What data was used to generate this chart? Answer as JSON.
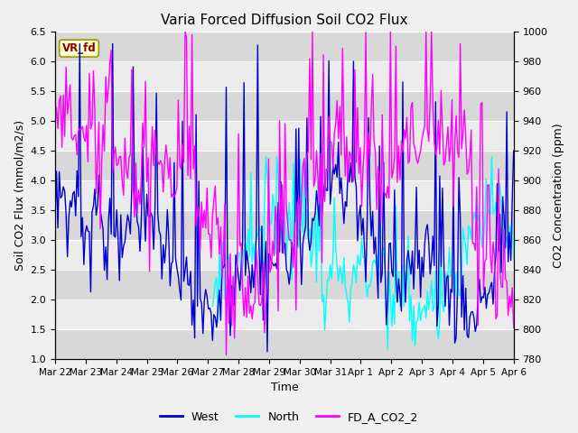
{
  "title": "Varia Forced Diffusion Soil CO2 Flux",
  "xlabel": "Time",
  "ylabel_left": "Soil CO2 Flux (mmol/m2/s)",
  "ylabel_right": "CO2 Concentration (ppm)",
  "ylim_left": [
    1.0,
    6.5
  ],
  "ylim_right": [
    780,
    1000
  ],
  "annotation_text": "VR_fd",
  "legend_labels": [
    "West",
    "North",
    "FD_A_CO2_2"
  ],
  "color_west": "#0000CD",
  "color_north": "#00FFFF",
  "color_co2": "#FF00FF",
  "bg_color": "#F0F0F0",
  "plot_bg_color": "#E8E8E8",
  "band_color_dark": "#D8D8D8",
  "band_color_light": "#EBEBEB",
  "grid_color": "#FFFFFF",
  "title_fontsize": 11,
  "label_fontsize": 9,
  "tick_fontsize": 8,
  "legend_fontsize": 9,
  "x_tick_dates": [
    "Mar 22",
    "Mar 23",
    "Mar 24",
    "Mar 25",
    "Mar 26",
    "Mar 27",
    "Mar 28",
    "Mar 29",
    "Mar 30",
    "Mar 31",
    "Apr 1",
    "Apr 2",
    "Apr 3",
    "Apr 4",
    "Apr 5",
    "Apr 6"
  ],
  "yticks_left": [
    1.0,
    1.5,
    2.0,
    2.5,
    3.0,
    3.5,
    4.0,
    4.5,
    5.0,
    5.5,
    6.0,
    6.5
  ],
  "yticks_right": [
    780,
    800,
    820,
    840,
    860,
    880,
    900,
    920,
    940,
    960,
    980,
    1000
  ],
  "n_points": 336
}
